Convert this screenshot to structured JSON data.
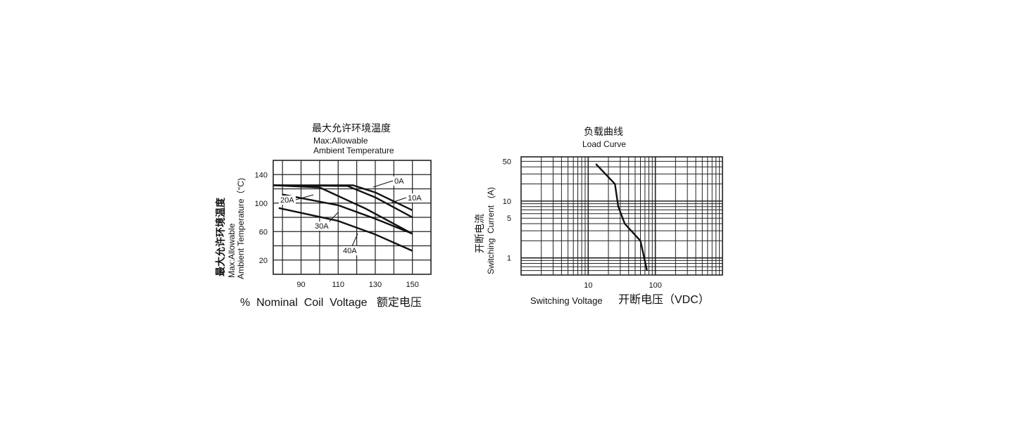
{
  "chart_data": [
    {
      "type": "line",
      "title_cn": "最大允许环境温度",
      "title_en_1": "Max:Allowable",
      "title_en_2": "Ambient Temperature",
      "ylabel_cn": "最大允许环境温度",
      "ylabel_en_1": "Max:Allowable",
      "ylabel_en_2": "Ambient Temperature（°C)",
      "xlabel": "%  Nominal  Coil  Voltage   额定电压",
      "xlim": [
        75,
        160
      ],
      "ylim": [
        0,
        160
      ],
      "xticks": [
        "90",
        "110",
        "130",
        "150"
      ],
      "yticks": [
        "20",
        "60",
        "100",
        "140"
      ],
      "grid": true,
      "series": [
        {
          "name": "0A",
          "x": [
            75,
            118,
            130,
            150
          ],
          "y": [
            125,
            125,
            115,
            90
          ]
        },
        {
          "name": "10A",
          "x": [
            75,
            115,
            130,
            150
          ],
          "y": [
            125,
            124,
            108,
            80
          ]
        },
        {
          "name": "20A",
          "x": [
            75,
            100,
            125,
            150
          ],
          "y": [
            125,
            122,
            92,
            57
          ]
        },
        {
          "name": "30A",
          "x": [
            80,
            110,
            130,
            150
          ],
          "y": [
            112,
            97,
            78,
            57
          ]
        },
        {
          "name": "40A",
          "x": [
            78,
            110,
            130,
            150
          ],
          "y": [
            93,
            75,
            56,
            33
          ]
        }
      ]
    },
    {
      "type": "line",
      "title_cn": "负载曲线",
      "title_en": "Load Curve",
      "ylabel_cn": "开断电流",
      "ylabel_en": "Switching  Current   (A)",
      "xlabel_en": "Switching Voltage",
      "xlabel_cn": "开断电压（VDC）",
      "xscale": "log",
      "yscale": "log",
      "xlim": [
        1,
        1000
      ],
      "ylim": [
        0.5,
        60
      ],
      "xticks": [
        "10",
        "100"
      ],
      "yticks": [
        "1",
        "5",
        "10",
        "50"
      ],
      "grid": true,
      "series": [
        {
          "name": "",
          "x": [
            13,
            25,
            28,
            35,
            60,
            75
          ],
          "y": [
            45,
            20,
            8,
            4,
            2,
            0.6
          ]
        }
      ]
    }
  ]
}
